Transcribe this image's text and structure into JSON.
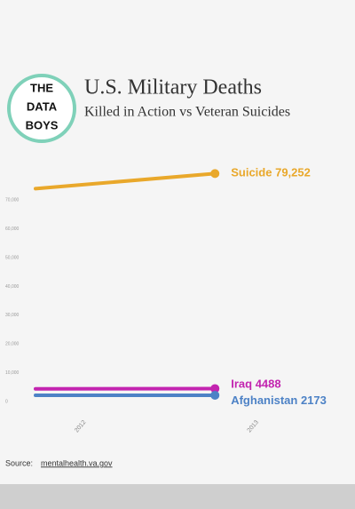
{
  "chart_data": {
    "type": "line",
    "title": "U.S. Military Deaths",
    "subtitle": "Killed in Action vs Veteran Suicides",
    "logo": [
      "THE",
      "DATA",
      "BOYS"
    ],
    "source_prefix": "Source:",
    "source_link": "mentalhealth.va.gov",
    "x": [
      2011.74,
      2012.78
    ],
    "xlim": [
      2011.74,
      2013
    ],
    "xticks": [
      2012,
      2013
    ],
    "ylim": [
      0,
      84000
    ],
    "yticks": [
      {
        "value": 0,
        "label": "0"
      },
      {
        "value": 10000,
        "label": "10,000"
      },
      {
        "value": 20000,
        "label": "20,000"
      },
      {
        "value": 30000,
        "label": "30,000"
      },
      {
        "value": 40000,
        "label": "40,000"
      },
      {
        "value": 50000,
        "label": "50,000"
      },
      {
        "value": 60000,
        "label": "60,000"
      },
      {
        "value": 70000,
        "label": "70,000"
      }
    ],
    "series": [
      {
        "name": "Suicide",
        "color": "#e9a82b",
        "values": [
          74000,
          79252
        ],
        "value_labels": [
          null,
          "79,252"
        ]
      },
      {
        "name": "Iraq",
        "color": "#c324b0",
        "values": [
          4400,
          4488
        ]
      },
      {
        "name": "Afghanistan",
        "color": "#4d82c6",
        "values": [
          2150,
          2173
        ]
      }
    ]
  }
}
